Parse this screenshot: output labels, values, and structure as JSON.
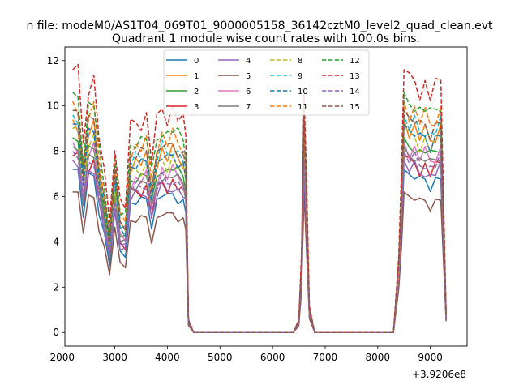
{
  "chart_data": {
    "type": "line",
    "suptitle": "n file: modeM0/AS1T04_069T01_9000005158_36142cztM0_level2_quad_clean.evt",
    "title": "Quadrant 1 module wise count rates with 100.0s bins.",
    "xlabel": "",
    "ylabel": "",
    "x_offset_label": "+3.9206e8",
    "xlim": [
      2050,
      9700
    ],
    "ylim": [
      -0.6,
      12.6
    ],
    "xticks": [
      2000,
      3000,
      4000,
      5000,
      6000,
      7000,
      8000,
      9000
    ],
    "yticks": [
      0,
      2,
      4,
      6,
      8,
      10,
      12
    ],
    "legend_position": "top-center",
    "x": [
      2200,
      2300,
      2400,
      2500,
      2600,
      2700,
      2800,
      2900,
      3000,
      3100,
      3200,
      3300,
      3400,
      3500,
      3600,
      3700,
      3800,
      3900,
      4000,
      4100,
      4200,
      4300,
      4350,
      4400,
      4500,
      6400,
      6500,
      6550,
      6600,
      6650,
      6700,
      6800,
      8300,
      8400,
      8450,
      8500,
      8600,
      8700,
      8800,
      8900,
      9000,
      9100,
      9200,
      9300
    ],
    "base_profile": [
      1.0,
      0.98,
      0.72,
      0.94,
      0.96,
      0.75,
      0.6,
      0.42,
      0.72,
      0.5,
      0.48,
      0.78,
      0.8,
      0.8,
      0.82,
      0.66,
      0.8,
      0.85,
      0.82,
      0.85,
      0.82,
      0.8,
      0.75,
      0.05,
      0.0,
      0.0,
      0.05,
      0.3,
      0.95,
      0.55,
      0.1,
      0.0,
      0.0,
      0.3,
      0.6,
      1.0,
      0.95,
      0.96,
      0.92,
      0.94,
      0.9,
      0.93,
      0.96,
      0.08
    ],
    "series": [
      {
        "name": "0",
        "color": "#1f77b4",
        "dash": "solid",
        "peak": 7.2
      },
      {
        "name": "1",
        "color": "#ff7f0e",
        "dash": "solid",
        "peak": 9.4
      },
      {
        "name": "2",
        "color": "#2ca02c",
        "dash": "solid",
        "peak": 8.6
      },
      {
        "name": "3",
        "color": "#d62728",
        "dash": "solid",
        "peak": 7.8
      },
      {
        "name": "4",
        "color": "#9467bd",
        "dash": "solid",
        "peak": 7.6
      },
      {
        "name": "5",
        "color": "#8c564b",
        "dash": "solid",
        "peak": 6.2
      },
      {
        "name": "6",
        "color": "#e377c2",
        "dash": "solid",
        "peak": 8.4
      },
      {
        "name": "7",
        "color": "#7f7f7f",
        "dash": "solid",
        "peak": 8.2
      },
      {
        "name": "8",
        "color": "#bcbd22",
        "dash": "dashed",
        "peak": 9.0
      },
      {
        "name": "9",
        "color": "#17becf",
        "dash": "dashed",
        "peak": 9.6
      },
      {
        "name": "10",
        "color": "#1f77b4",
        "dash": "dashed",
        "peak": 9.2
      },
      {
        "name": "11",
        "color": "#ff7f0e",
        "dash": "dashed",
        "peak": 10.2
      },
      {
        "name": "12",
        "color": "#2ca02c",
        "dash": "dashed",
        "peak": 10.6
      },
      {
        "name": "13",
        "color": "#d62728",
        "dash": "dashed",
        "peak": 11.6
      },
      {
        "name": "14",
        "color": "#9467bd",
        "dash": "dashed",
        "peak": 8.0
      },
      {
        "name": "15",
        "color": "#8c564b",
        "dash": "dashed",
        "peak": 9.8
      }
    ]
  }
}
